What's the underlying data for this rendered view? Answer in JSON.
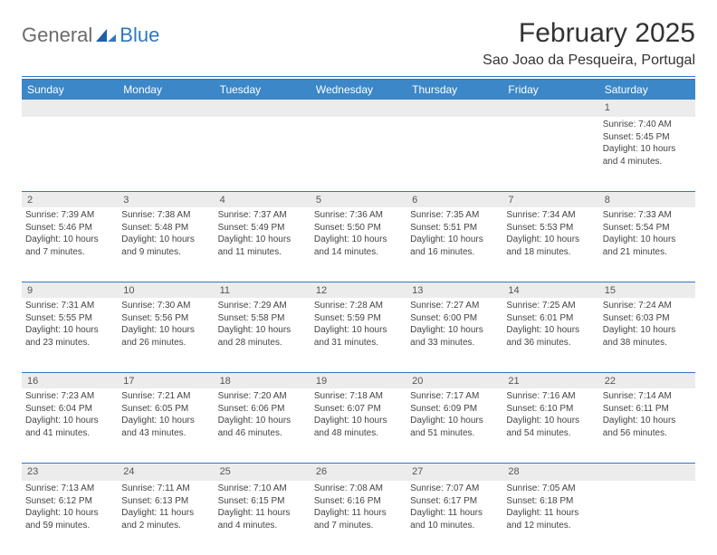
{
  "logo": {
    "text1": "General",
    "text2": "Blue"
  },
  "title": "February 2025",
  "location": "Sao Joao da Pesqueira, Portugal",
  "colors": {
    "header_bg": "#3b87c8",
    "line": "#2f78c2",
    "daynum_bg": "#ececec",
    "text": "#333333",
    "logo_gray": "#6b6b6b",
    "logo_blue": "#2f78c2"
  },
  "dayNames": [
    "Sunday",
    "Monday",
    "Tuesday",
    "Wednesday",
    "Thursday",
    "Friday",
    "Saturday"
  ],
  "weeks": [
    [
      null,
      null,
      null,
      null,
      null,
      null,
      {
        "n": "1",
        "sunrise": "Sunrise: 7:40 AM",
        "sunset": "Sunset: 5:45 PM",
        "daylight": "Daylight: 10 hours and 4 minutes."
      }
    ],
    [
      {
        "n": "2",
        "sunrise": "Sunrise: 7:39 AM",
        "sunset": "Sunset: 5:46 PM",
        "daylight": "Daylight: 10 hours and 7 minutes."
      },
      {
        "n": "3",
        "sunrise": "Sunrise: 7:38 AM",
        "sunset": "Sunset: 5:48 PM",
        "daylight": "Daylight: 10 hours and 9 minutes."
      },
      {
        "n": "4",
        "sunrise": "Sunrise: 7:37 AM",
        "sunset": "Sunset: 5:49 PM",
        "daylight": "Daylight: 10 hours and 11 minutes."
      },
      {
        "n": "5",
        "sunrise": "Sunrise: 7:36 AM",
        "sunset": "Sunset: 5:50 PM",
        "daylight": "Daylight: 10 hours and 14 minutes."
      },
      {
        "n": "6",
        "sunrise": "Sunrise: 7:35 AM",
        "sunset": "Sunset: 5:51 PM",
        "daylight": "Daylight: 10 hours and 16 minutes."
      },
      {
        "n": "7",
        "sunrise": "Sunrise: 7:34 AM",
        "sunset": "Sunset: 5:53 PM",
        "daylight": "Daylight: 10 hours and 18 minutes."
      },
      {
        "n": "8",
        "sunrise": "Sunrise: 7:33 AM",
        "sunset": "Sunset: 5:54 PM",
        "daylight": "Daylight: 10 hours and 21 minutes."
      }
    ],
    [
      {
        "n": "9",
        "sunrise": "Sunrise: 7:31 AM",
        "sunset": "Sunset: 5:55 PM",
        "daylight": "Daylight: 10 hours and 23 minutes."
      },
      {
        "n": "10",
        "sunrise": "Sunrise: 7:30 AM",
        "sunset": "Sunset: 5:56 PM",
        "daylight": "Daylight: 10 hours and 26 minutes."
      },
      {
        "n": "11",
        "sunrise": "Sunrise: 7:29 AM",
        "sunset": "Sunset: 5:58 PM",
        "daylight": "Daylight: 10 hours and 28 minutes."
      },
      {
        "n": "12",
        "sunrise": "Sunrise: 7:28 AM",
        "sunset": "Sunset: 5:59 PM",
        "daylight": "Daylight: 10 hours and 31 minutes."
      },
      {
        "n": "13",
        "sunrise": "Sunrise: 7:27 AM",
        "sunset": "Sunset: 6:00 PM",
        "daylight": "Daylight: 10 hours and 33 minutes."
      },
      {
        "n": "14",
        "sunrise": "Sunrise: 7:25 AM",
        "sunset": "Sunset: 6:01 PM",
        "daylight": "Daylight: 10 hours and 36 minutes."
      },
      {
        "n": "15",
        "sunrise": "Sunrise: 7:24 AM",
        "sunset": "Sunset: 6:03 PM",
        "daylight": "Daylight: 10 hours and 38 minutes."
      }
    ],
    [
      {
        "n": "16",
        "sunrise": "Sunrise: 7:23 AM",
        "sunset": "Sunset: 6:04 PM",
        "daylight": "Daylight: 10 hours and 41 minutes."
      },
      {
        "n": "17",
        "sunrise": "Sunrise: 7:21 AM",
        "sunset": "Sunset: 6:05 PM",
        "daylight": "Daylight: 10 hours and 43 minutes."
      },
      {
        "n": "18",
        "sunrise": "Sunrise: 7:20 AM",
        "sunset": "Sunset: 6:06 PM",
        "daylight": "Daylight: 10 hours and 46 minutes."
      },
      {
        "n": "19",
        "sunrise": "Sunrise: 7:18 AM",
        "sunset": "Sunset: 6:07 PM",
        "daylight": "Daylight: 10 hours and 48 minutes."
      },
      {
        "n": "20",
        "sunrise": "Sunrise: 7:17 AM",
        "sunset": "Sunset: 6:09 PM",
        "daylight": "Daylight: 10 hours and 51 minutes."
      },
      {
        "n": "21",
        "sunrise": "Sunrise: 7:16 AM",
        "sunset": "Sunset: 6:10 PM",
        "daylight": "Daylight: 10 hours and 54 minutes."
      },
      {
        "n": "22",
        "sunrise": "Sunrise: 7:14 AM",
        "sunset": "Sunset: 6:11 PM",
        "daylight": "Daylight: 10 hours and 56 minutes."
      }
    ],
    [
      {
        "n": "23",
        "sunrise": "Sunrise: 7:13 AM",
        "sunset": "Sunset: 6:12 PM",
        "daylight": "Daylight: 10 hours and 59 minutes."
      },
      {
        "n": "24",
        "sunrise": "Sunrise: 7:11 AM",
        "sunset": "Sunset: 6:13 PM",
        "daylight": "Daylight: 11 hours and 2 minutes."
      },
      {
        "n": "25",
        "sunrise": "Sunrise: 7:10 AM",
        "sunset": "Sunset: 6:15 PM",
        "daylight": "Daylight: 11 hours and 4 minutes."
      },
      {
        "n": "26",
        "sunrise": "Sunrise: 7:08 AM",
        "sunset": "Sunset: 6:16 PM",
        "daylight": "Daylight: 11 hours and 7 minutes."
      },
      {
        "n": "27",
        "sunrise": "Sunrise: 7:07 AM",
        "sunset": "Sunset: 6:17 PM",
        "daylight": "Daylight: 11 hours and 10 minutes."
      },
      {
        "n": "28",
        "sunrise": "Sunrise: 7:05 AM",
        "sunset": "Sunset: 6:18 PM",
        "daylight": "Daylight: 11 hours and 12 minutes."
      },
      null
    ]
  ]
}
